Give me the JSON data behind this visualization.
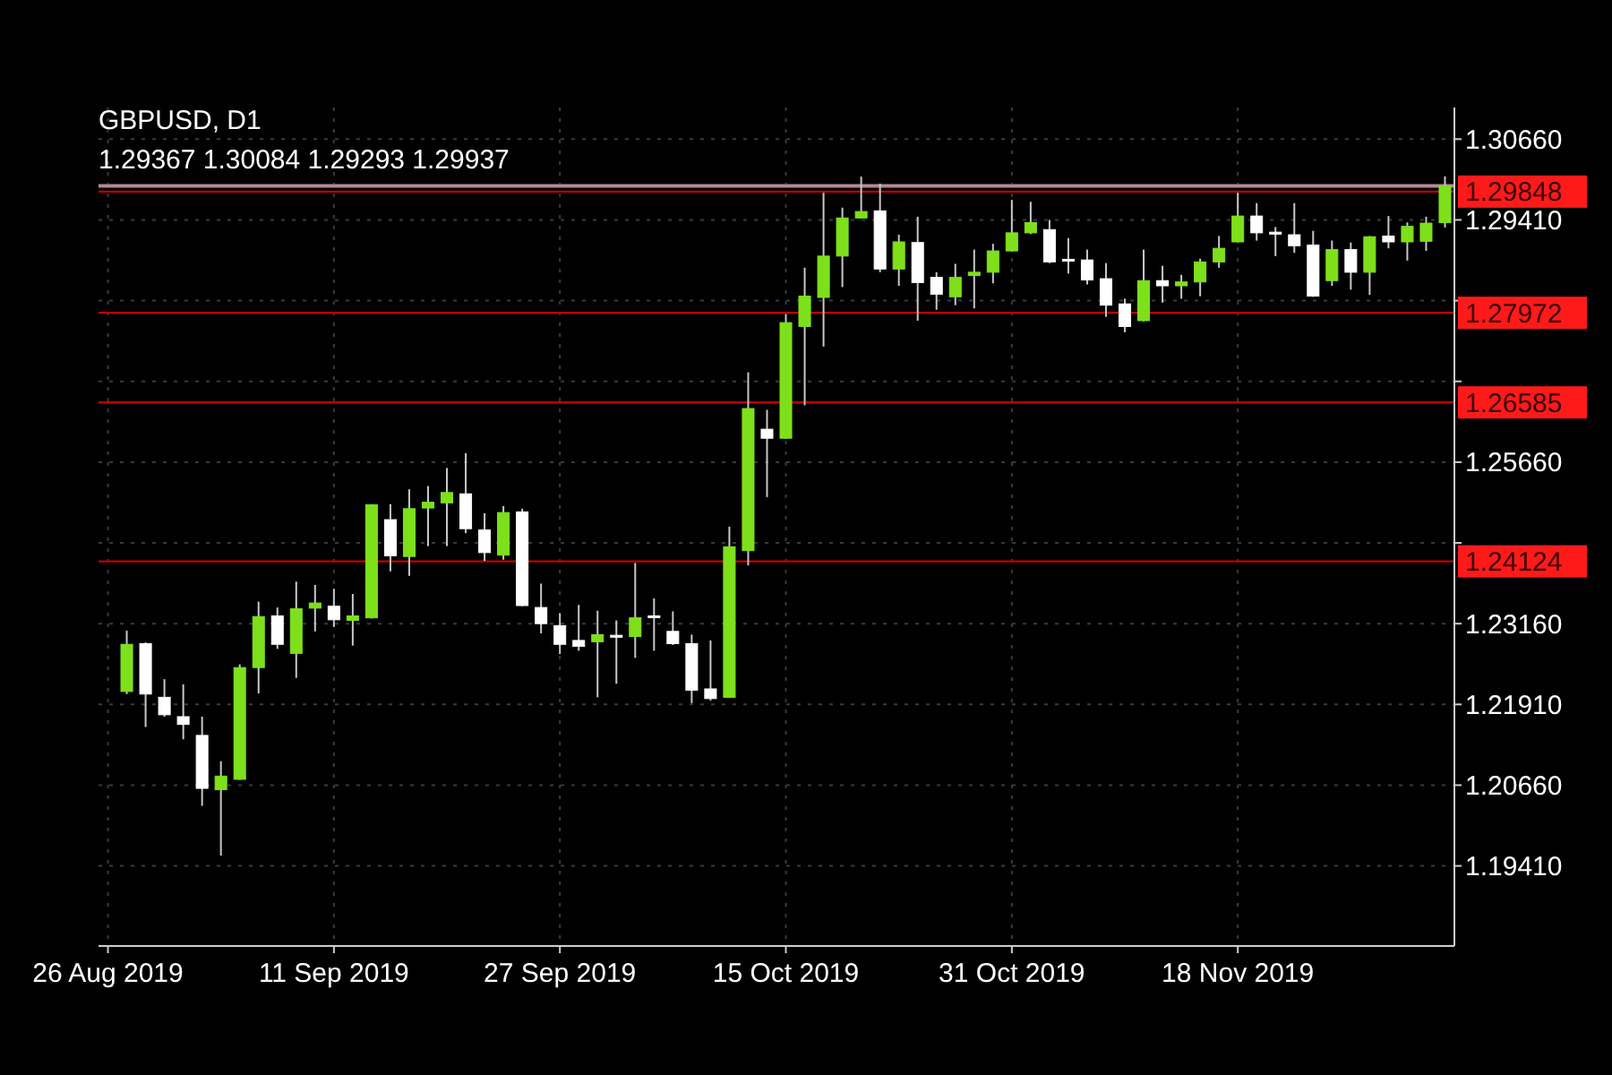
{
  "chart_data": {
    "type": "candlestick",
    "title": "GBPUSD, D1",
    "subtitle": "1.29367 1.30084 1.29293 1.29937",
    "categories": [
      "26 Aug 2019",
      null,
      null,
      null,
      null,
      null,
      null,
      null,
      null,
      null,
      null,
      null,
      "11 Sep 2019",
      null,
      null,
      null,
      null,
      null,
      null,
      null,
      null,
      null,
      null,
      null,
      "27 Sep 2019",
      null,
      null,
      null,
      null,
      null,
      null,
      null,
      null,
      null,
      null,
      null,
      "15 Oct 2019",
      null,
      null,
      null,
      null,
      null,
      null,
      null,
      null,
      null,
      null,
      null,
      "31 Oct 2019",
      null,
      null,
      null,
      null,
      null,
      null,
      null,
      null,
      null,
      null,
      null,
      "18 Nov 2019",
      null,
      null,
      null,
      null,
      null,
      null,
      null,
      null,
      null,
      null,
      null
    ],
    "ohlc": [
      null,
      [
        1.2211,
        1.2305,
        1.2207,
        1.2284
      ],
      [
        1.2285,
        1.2287,
        1.2156,
        1.2207
      ],
      [
        1.2202,
        1.223,
        1.2172,
        1.2175
      ],
      [
        1.2172,
        1.2222,
        1.2137,
        1.216
      ],
      [
        1.2143,
        1.2172,
        1.2034,
        1.2061
      ],
      [
        1.2059,
        1.2103,
        1.1957,
        1.208
      ],
      [
        1.2075,
        1.2253,
        1.2074,
        1.2248
      ],
      [
        1.2248,
        1.235,
        1.2208,
        1.2327
      ],
      [
        1.2328,
        1.2341,
        1.2277,
        1.2284
      ],
      [
        1.227,
        1.2381,
        1.2232,
        1.2339
      ],
      [
        1.234,
        1.2376,
        1.2304,
        1.2348
      ],
      [
        1.2343,
        1.237,
        1.2311,
        1.2322
      ],
      [
        1.2321,
        1.2362,
        1.2282,
        1.2328
      ],
      [
        1.2325,
        1.2501,
        1.2324,
        1.25
      ],
      [
        1.2477,
        1.2501,
        1.2397,
        1.2421
      ],
      [
        1.242,
        1.2524,
        1.239,
        1.2494
      ],
      [
        1.2495,
        1.2529,
        1.2436,
        1.2504
      ],
      [
        1.2503,
        1.2557,
        1.2436,
        1.2519
      ],
      [
        1.2517,
        1.258,
        1.2456,
        1.2463
      ],
      [
        1.2461,
        1.2487,
        1.2413,
        1.2426
      ],
      [
        1.2422,
        1.2498,
        1.2415,
        1.2488
      ],
      [
        1.2489,
        1.2494,
        1.2343,
        1.2344
      ],
      [
        1.2341,
        1.2378,
        1.2301,
        1.2316
      ],
      [
        1.2313,
        1.2332,
        1.2269,
        1.2284
      ],
      [
        1.229,
        1.2345,
        1.2274,
        1.2281
      ],
      [
        1.2288,
        1.2336,
        1.2202,
        1.2299
      ],
      [
        1.2298,
        1.2321,
        1.2223,
        1.2295
      ],
      [
        1.2296,
        1.241,
        1.2263,
        1.2325
      ],
      [
        1.2328,
        1.2355,
        1.2274,
        1.2326
      ],
      [
        1.2304,
        1.2335,
        1.2283,
        1.2285
      ],
      [
        1.2285,
        1.2299,
        1.2193,
        1.2213
      ],
      [
        1.2215,
        1.229,
        1.2197,
        1.22
      ],
      [
        1.2202,
        1.2466,
        1.2201,
        1.2435
      ],
      [
        1.2429,
        1.2705,
        1.2406,
        1.2649
      ],
      [
        1.2617,
        1.2647,
        1.2512,
        1.2603
      ],
      [
        1.2603,
        1.2795,
        1.2602,
        1.2782
      ],
      [
        1.2776,
        1.2867,
        1.2654,
        1.2823
      ],
      [
        1.2821,
        1.2983,
        1.2745,
        1.2885
      ],
      [
        1.2885,
        1.296,
        1.2837,
        1.2944
      ],
      [
        1.2944,
        1.3008,
        1.2943,
        1.2954
      ],
      [
        1.2955,
        1.2997,
        1.286,
        1.2865
      ],
      [
        1.2865,
        1.2918,
        1.2839,
        1.2907
      ],
      [
        1.2906,
        1.2946,
        1.2785,
        1.2844
      ],
      [
        1.2852,
        1.286,
        1.2802,
        1.2826
      ],
      [
        1.2822,
        1.2873,
        1.2809,
        1.2852
      ],
      [
        1.2855,
        1.2895,
        1.2804,
        1.286
      ],
      [
        1.286,
        1.2904,
        1.2843,
        1.2893
      ],
      [
        1.2893,
        1.2972,
        1.2892,
        1.2921
      ],
      [
        1.2921,
        1.2969,
        1.2919,
        1.2937
      ],
      [
        1.2926,
        1.2941,
        1.2874,
        1.2876
      ],
      [
        1.288,
        1.2913,
        1.2858,
        1.2878
      ],
      [
        1.2879,
        1.2895,
        1.2841,
        1.2848
      ],
      [
        1.285,
        1.2874,
        1.2791,
        1.2809
      ],
      [
        1.2811,
        1.2819,
        1.2767,
        1.2776
      ],
      [
        1.2785,
        1.2895,
        1.2784,
        1.2847
      ],
      [
        1.2847,
        1.287,
        1.2813,
        1.2839
      ],
      [
        1.2839,
        1.2856,
        1.2819,
        1.2845
      ],
      [
        1.2845,
        1.2881,
        1.2823,
        1.2876
      ],
      [
        1.2876,
        1.2916,
        1.2867,
        1.2897
      ],
      [
        1.2907,
        1.2983,
        1.2906,
        1.2947
      ],
      [
        1.2947,
        1.2967,
        1.2909,
        1.2921
      ],
      [
        1.2922,
        1.293,
        1.2885,
        1.2919
      ],
      [
        1.2918,
        1.2967,
        1.289,
        1.2901
      ],
      [
        1.2902,
        1.2924,
        1.2822,
        1.2823
      ],
      [
        1.2847,
        1.2909,
        1.2839,
        1.2895
      ],
      [
        1.2895,
        1.2906,
        1.2833,
        1.286
      ],
      [
        1.286,
        1.2916,
        1.2825,
        1.2915
      ],
      [
        1.2916,
        1.2947,
        1.2897,
        1.2907
      ],
      [
        1.2907,
        1.2937,
        1.2878,
        1.2931
      ],
      [
        1.2908,
        1.2946,
        1.2893,
        1.2936
      ],
      [
        1.29367,
        1.30084,
        1.29293,
        1.29937
      ]
    ],
    "colors": [
      null,
      "#7ee01a",
      "#ffffff",
      "#ffffff",
      "#ffffff",
      "#ffffff",
      "#7ee01a",
      "#7ee01a",
      "#7ee01a",
      "#ffffff",
      "#7ee01a",
      "#7ee01a",
      "#ffffff",
      "#7ee01a",
      "#7ee01a",
      "#ffffff",
      "#7ee01a",
      "#7ee01a",
      "#7ee01a",
      "#ffffff",
      "#ffffff",
      "#7ee01a",
      "#ffffff",
      "#ffffff",
      "#ffffff",
      "#ffffff",
      "#7ee01a",
      "#ffffff",
      "#7ee01a",
      "#ffffff",
      "#ffffff",
      "#ffffff",
      "#ffffff",
      "#7ee01a",
      "#7ee01a",
      "#ffffff",
      "#7ee01a",
      "#7ee01a",
      "#7ee01a",
      "#7ee01a",
      "#7ee01a",
      "#ffffff",
      "#7ee01a",
      "#ffffff",
      "#ffffff",
      "#7ee01a",
      "#7ee01a",
      "#7ee01a",
      "#7ee01a",
      "#7ee01a",
      "#ffffff",
      "#ffffff",
      "#ffffff",
      "#ffffff",
      "#ffffff",
      "#7ee01a",
      "#ffffff",
      "#7ee01a",
      "#7ee01a",
      "#7ee01a",
      "#7ee01a",
      "#ffffff",
      "#ffffff",
      "#ffffff",
      "#ffffff",
      "#7ee01a",
      "#ffffff",
      "#7ee01a",
      "#ffffff",
      "#7ee01a",
      "#7ee01a",
      "#7ee01a"
    ],
    "ylim": [
      1.1817,
      1.3115
    ],
    "yticks": [
      {
        "value": 1.1941,
        "label": "1.19410"
      },
      {
        "value": 1.2066,
        "label": "1.20660"
      },
      {
        "value": 1.2191,
        "label": "1.21910"
      },
      {
        "value": 1.2316,
        "label": "1.23160"
      },
      {
        "value": 1.2441,
        "label": null
      },
      {
        "value": 1.2566,
        "label": "1.25660"
      },
      {
        "value": 1.2691,
        "label": null
      },
      {
        "value": 1.2816,
        "label": null
      },
      {
        "value": 1.2941,
        "label": "1.29410"
      },
      {
        "value": 1.3066,
        "label": "1.30660"
      }
    ],
    "grid": true,
    "ref_lines": [
      {
        "axis": "y",
        "value": 1.29937,
        "color": "#b08a96"
      },
      {
        "axis": "y",
        "value": 1.29848,
        "label": "1.29848",
        "color": "#c00000"
      },
      {
        "axis": "y",
        "value": 1.27972,
        "label": "1.27972",
        "color": "#c00000"
      },
      {
        "axis": "y",
        "value": 1.26585,
        "label": "1.26585",
        "color": "#c00000"
      },
      {
        "axis": "y",
        "value": 1.24124,
        "label": "1.24124",
        "color": "#c00000"
      }
    ]
  }
}
